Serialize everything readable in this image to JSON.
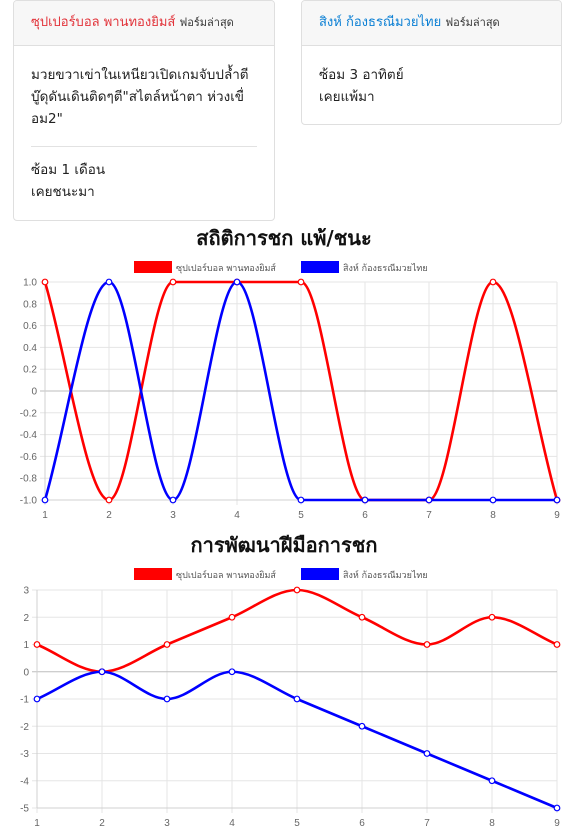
{
  "cards": [
    {
      "name": "ซุปเปอร์บอล พานทองยิมส์",
      "suffix": "ฟอร์มล่าสุด",
      "message": "มวยขวาเข่าในเหนียวเปิดเกมจับปล้ำตีบู๊ดุดันเดินติดๆตี\"สไตล์หน้าตา ห่วงเขื่อม2\"",
      "training": "ซ้อม 1 เดือน",
      "history": "เคยชนะมา"
    },
    {
      "name": "สิงห์ ก้องธรณีมวยไทย",
      "suffix": "ฟอร์มล่าสุด",
      "training": "ซ้อม 3 อาทิตย์",
      "history": "เคยแพ้มา"
    }
  ],
  "colors": {
    "red": "#ff0000",
    "blue": "#0000ff"
  },
  "chart_data": [
    {
      "type": "line",
      "title": "สถิติการชก แพ้/ชนะ",
      "x": [
        1,
        2,
        3,
        4,
        5,
        6,
        7,
        8,
        9
      ],
      "ylim": [
        -1.0,
        1.0
      ],
      "yticks": [
        "1.0",
        "0.8",
        "0.6",
        "0.4",
        "0.2",
        "0",
        "-0.2",
        "-0.4",
        "-0.6",
        "-0.8",
        "-1.0"
      ],
      "grid": true,
      "legend_position": "top",
      "series": [
        {
          "name": "ซุปเปอร์บอล พานทองยิมส์",
          "color": "#ff0000",
          "values": [
            1,
            -1,
            1,
            1,
            1,
            -1,
            -1,
            1,
            -1
          ]
        },
        {
          "name": "สิงห์ ก้องธรณีมวยไทย",
          "color": "#0000ff",
          "values": [
            -1,
            1,
            -1,
            1,
            -1,
            -1,
            -1,
            -1,
            -1
          ]
        }
      ]
    },
    {
      "type": "line",
      "title": "การพัฒนาฝีมือการชก",
      "x": [
        1,
        2,
        3,
        4,
        5,
        6,
        7,
        8,
        9
      ],
      "ylim": [
        -5,
        3
      ],
      "yticks": [
        "3",
        "2",
        "1",
        "0",
        "-1",
        "-2",
        "-3",
        "-4",
        "-5"
      ],
      "grid": true,
      "legend_position": "top",
      "series": [
        {
          "name": "ซุปเปอร์บอล พานทองยิมส์",
          "color": "#ff0000",
          "values": [
            1,
            0,
            1,
            2,
            3,
            2,
            1,
            2,
            1
          ]
        },
        {
          "name": "สิงห์ ก้องธรณีมวยไทย",
          "color": "#0000ff",
          "values": [
            -1,
            0,
            -1,
            0,
            -1,
            -2,
            -3,
            -4,
            -5
          ]
        }
      ]
    }
  ]
}
